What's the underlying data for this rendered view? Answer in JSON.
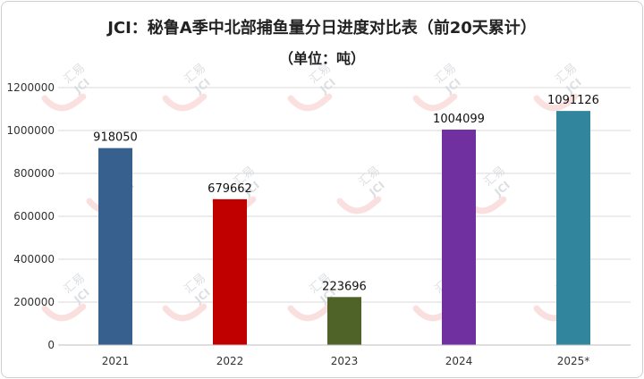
{
  "chart_data": {
    "type": "bar",
    "title": "JCI：秘鲁A季中北部捕鱼量分日进度对比表（前20天累计）",
    "subtitle": "（单位：吨）",
    "categories": [
      "2021",
      "2022",
      "2023",
      "2024",
      "2025*"
    ],
    "values": [
      918050,
      679662,
      223696,
      1004099,
      1091126
    ],
    "bar_colors": [
      "#37608f",
      "#c00000",
      "#4f6228",
      "#7030a0",
      "#31859c"
    ],
    "ylim": [
      0,
      1200000
    ],
    "yticks": [
      0,
      200000,
      400000,
      600000,
      800000,
      1000000,
      1200000
    ],
    "grid": true,
    "legend": "none"
  },
  "watermark": {
    "text": "汇易",
    "sub": "JCI"
  }
}
